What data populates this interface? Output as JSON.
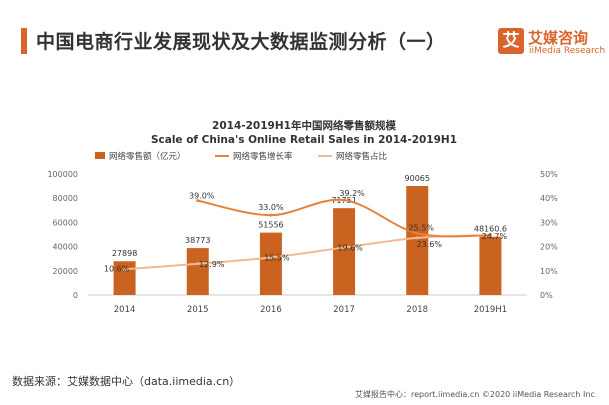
{
  "header": {
    "title": "中国电商行业发展现状及大数据监测分析（一）"
  },
  "brand": {
    "logo_char": "艾",
    "name_cn": "艾媒咨询",
    "name_en": "iiMedia Research",
    "color": "#d9652b"
  },
  "chart_data": {
    "type": "bar",
    "title": "2014-2019H1年中国网络零售额规模",
    "subtitle": "Scale of China's Online Retail Sales in 2014-2019H1",
    "categories": [
      "2014",
      "2015",
      "2016",
      "2017",
      "2018",
      "2019H1"
    ],
    "ylim": [
      0,
      100000
    ],
    "y_ticks": [
      "0",
      "20000",
      "40000",
      "60000",
      "80000",
      "100000"
    ],
    "y2lim": [
      0,
      50
    ],
    "y2_ticks": [
      "0%",
      "10%",
      "20%",
      "30%",
      "40%",
      "50%"
    ],
    "legend_position": "top",
    "grid": false,
    "series": [
      {
        "name": "网络零售额（亿元）",
        "kind": "bar",
        "axis": "left",
        "color": "#c9631f",
        "values": [
          27898,
          38773,
          51556,
          71751,
          90065,
          48160.6
        ],
        "labels": [
          "27898",
          "38773",
          "51556",
          "71751",
          "90065",
          "48160.6"
        ]
      },
      {
        "name": "网络零售增长率",
        "kind": "line",
        "axis": "right",
        "color": "#e8823a",
        "values": [
          null,
          39.0,
          33.0,
          39.2,
          25.5,
          24.7
        ],
        "labels": [
          "",
          "39.0%",
          "33.0%",
          "39.2%",
          "25.5%",
          "24.7%"
        ]
      },
      {
        "name": "网络零售占比",
        "kind": "line",
        "axis": "right",
        "color": "#f2b98f",
        "values": [
          10.6,
          12.9,
          15.5,
          19.6,
          23.6,
          24.7
        ],
        "labels": [
          "10.6%",
          "12.9%",
          "15.5%",
          "19.6%",
          "23.6%",
          ""
        ]
      }
    ]
  },
  "source": "数据来源：艾媒数据中心（data.iimedia.cn）",
  "footer": {
    "note": "艾媒报告中心：report.iimedia.cn ©2020 iiMedia Research Inc"
  }
}
